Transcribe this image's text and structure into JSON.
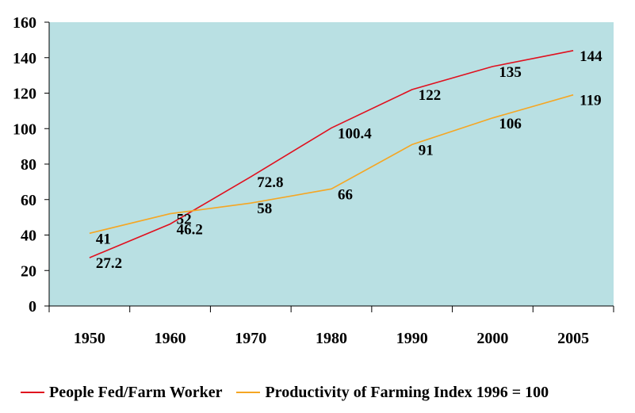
{
  "chart_data": {
    "type": "line",
    "categories": [
      "1950",
      "1960",
      "1970",
      "1980",
      "1990",
      "2000",
      "2005"
    ],
    "series": [
      {
        "name": "People Fed/Farm Worker",
        "values": [
          27.2,
          46.2,
          72.8,
          100.4,
          122,
          135,
          144
        ],
        "labels": [
          "27.2",
          "46.2",
          "72.8",
          "100.4",
          "122",
          "135",
          "144"
        ],
        "color": "#e0101e"
      },
      {
        "name": "Productivity of Farming Index 1996 = 100",
        "values": [
          41,
          52,
          58,
          66,
          91,
          106,
          119
        ],
        "labels": [
          "41",
          "52",
          "58",
          "66",
          "91",
          "106",
          "119"
        ],
        "color": "#f5a623"
      }
    ],
    "ylim": [
      0,
      160
    ],
    "yticks": [
      "0",
      "20",
      "40",
      "60",
      "80",
      "100",
      "120",
      "140",
      "160"
    ],
    "plot_background": "#b9e0e3",
    "grid": false,
    "legend_position": "bottom"
  }
}
